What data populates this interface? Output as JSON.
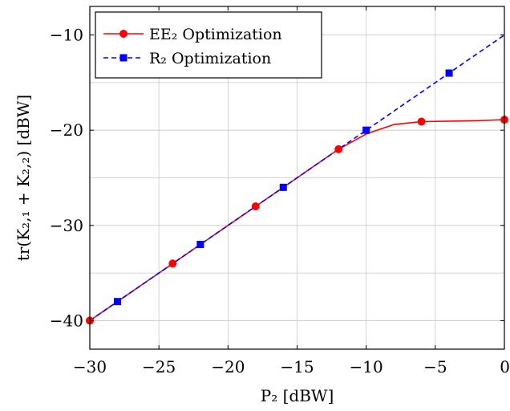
{
  "chart_data": {
    "type": "line",
    "title": "",
    "xlabel": "P₂ [dBW]",
    "ylabel": "tr(K₂,₁ + K₂,₂) [dBW]",
    "xlim": [
      -30,
      0
    ],
    "ylim": [
      -43,
      -7
    ],
    "xticks": [
      -30,
      -25,
      -20,
      -15,
      -10,
      -5,
      0
    ],
    "yticks": [
      -40,
      -30,
      -20,
      -10
    ],
    "xtick_labels": [
      "−30",
      "−25",
      "−20",
      "−15",
      "−10",
      "−5",
      "0"
    ],
    "ytick_labels": [
      "−40",
      "−30",
      "−20",
      "−10"
    ],
    "grid": true,
    "legend_position": "top-left",
    "series": [
      {
        "name": "EE₂ Optimization",
        "color": "#ff0000",
        "line_style": "solid",
        "marker": "circle",
        "x": [
          -30,
          -28,
          -26,
          -24,
          -22,
          -20,
          -18,
          -16,
          -14,
          -12,
          -10,
          -8,
          -6,
          -4,
          -2,
          0
        ],
        "y": [
          -40,
          -38,
          -36,
          -34,
          -32,
          -30,
          -28,
          -26,
          -24,
          -22,
          -20.4,
          -19.4,
          -19.1,
          -19.05,
          -19.0,
          -18.9
        ],
        "marker_x": [
          -30,
          -24,
          -18,
          -12,
          -6,
          0
        ],
        "marker_y": [
          -40,
          -34,
          -28,
          -22,
          -19.1,
          -18.9
        ]
      },
      {
        "name": "R₂ Optimization",
        "color": "#0000ff",
        "line_style": "dashed",
        "marker": "square",
        "x": [
          -30,
          -28,
          -26,
          -24,
          -22,
          -20,
          -18,
          -16,
          -14,
          -12,
          -10,
          -8,
          -6,
          -4,
          -2,
          0
        ],
        "y": [
          -40,
          -38,
          -36,
          -34,
          -32,
          -30,
          -28,
          -26,
          -24,
          -22,
          -20,
          -18,
          -16,
          -14,
          -12,
          -10
        ],
        "marker_x": [
          -28,
          -22,
          -16,
          -10,
          -4
        ],
        "marker_y": [
          -38,
          -32,
          -26,
          -20,
          -14
        ]
      }
    ]
  }
}
